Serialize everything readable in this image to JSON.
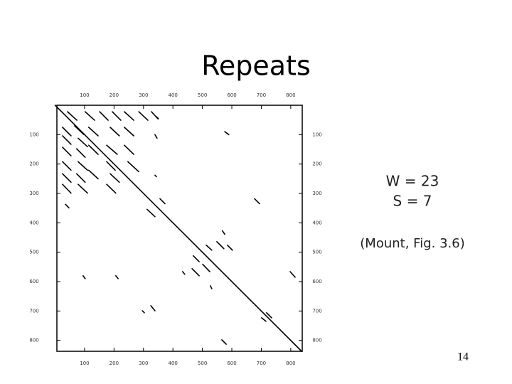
{
  "slide": {
    "title": "Repeats",
    "annotations": [
      "W = 23",
      "S = 7",
      "(Mount, Fig. 3.6)"
    ],
    "page_number": "14"
  },
  "chart_data": {
    "type": "dotplot",
    "color": "#000000",
    "xlim": [
      6,
      839
    ],
    "ylim": [
      0,
      837
    ],
    "xticks": [
      100,
      200,
      300,
      400,
      500,
      600,
      700,
      800
    ],
    "yticks": [
      100,
      200,
      300,
      400,
      500,
      600,
      700,
      800
    ],
    "segments": [
      {
        "x": [
          0,
          837
        ],
        "y": [
          0,
          837
        ]
      },
      {
        "x": [
          42,
          74
        ],
        "y": [
          22,
          51
        ]
      },
      {
        "x": [
          102,
          134
        ],
        "y": [
          22,
          51
        ]
      },
      {
        "x": [
          151,
          180
        ],
        "y": [
          22,
          51
        ]
      },
      {
        "x": [
          194,
          223
        ],
        "y": [
          22,
          51
        ]
      },
      {
        "x": [
          235,
          267
        ],
        "y": [
          22,
          51
        ]
      },
      {
        "x": [
          284,
          315
        ],
        "y": [
          22,
          51
        ]
      },
      {
        "x": [
          327,
          349
        ],
        "y": [
          22,
          46
        ]
      },
      {
        "x": [
          25,
          54
        ],
        "y": [
          75,
          104
        ]
      },
      {
        "x": [
          66,
          98
        ],
        "y": [
          70,
          100
        ]
      },
      {
        "x": [
          114,
          146
        ],
        "y": [
          75,
          104
        ]
      },
      {
        "x": [
          187,
          218
        ],
        "y": [
          75,
          104
        ]
      },
      {
        "x": [
          235,
          267
        ],
        "y": [
          75,
          104
        ]
      },
      {
        "x": [
          25,
          54
        ],
        "y": [
          104,
          133
        ]
      },
      {
        "x": [
          78,
          110
        ],
        "y": [
          112,
          141
        ]
      },
      {
        "x": [
          25,
          54
        ],
        "y": [
          143,
          172
        ]
      },
      {
        "x": [
          73,
          102
        ],
        "y": [
          148,
          177
        ]
      },
      {
        "x": [
          114,
          146
        ],
        "y": [
          136,
          167
        ]
      },
      {
        "x": [
          175,
          211
        ],
        "y": [
          136,
          167
        ]
      },
      {
        "x": [
          235,
          267
        ],
        "y": [
          136,
          167
        ]
      },
      {
        "x": [
          25,
          54
        ],
        "y": [
          192,
          221
        ]
      },
      {
        "x": [
          78,
          110
        ],
        "y": [
          192,
          221
        ]
      },
      {
        "x": [
          175,
          204
        ],
        "y": [
          192,
          221
        ]
      },
      {
        "x": [
          247,
          284
        ],
        "y": [
          192,
          226
        ]
      },
      {
        "x": [
          25,
          54
        ],
        "y": [
          233,
          262
        ]
      },
      {
        "x": [
          73,
          102
        ],
        "y": [
          233,
          262
        ]
      },
      {
        "x": [
          114,
          146
        ],
        "y": [
          221,
          250
        ]
      },
      {
        "x": [
          187,
          218
        ],
        "y": [
          233,
          262
        ]
      },
      {
        "x": [
          25,
          54
        ],
        "y": [
          269,
          299
        ]
      },
      {
        "x": [
          78,
          110
        ],
        "y": [
          269,
          299
        ]
      },
      {
        "x": [
          175,
          206
        ],
        "y": [
          269,
          299
        ]
      },
      {
        "x": [
          35,
          47
        ],
        "y": [
          337,
          349
        ]
      },
      {
        "x": [
          356,
          373
        ],
        "y": [
          318,
          335
        ]
      },
      {
        "x": [
          312,
          339
        ],
        "y": [
          354,
          379
        ]
      },
      {
        "x": [
          677,
          694
        ],
        "y": [
          318,
          335
        ]
      },
      {
        "x": [
          568,
          576
        ],
        "y": [
          427,
          439
        ]
      },
      {
        "x": [
          513,
          532
        ],
        "y": [
          476,
          493
        ]
      },
      {
        "x": [
          549,
          573
        ],
        "y": [
          464,
          488
        ]
      },
      {
        "x": [
          585,
          602
        ],
        "y": [
          476,
          493
        ]
      },
      {
        "x": [
          469,
          489
        ],
        "y": [
          512,
          532
        ]
      },
      {
        "x": [
          501,
          525
        ],
        "y": [
          541,
          566
        ]
      },
      {
        "x": [
          465,
          489
        ],
        "y": [
          556,
          580
        ]
      },
      {
        "x": [
          433,
          440
        ],
        "y": [
          566,
          575
        ]
      },
      {
        "x": [
          576,
          590
        ],
        "y": [
          90,
          100
        ]
      },
      {
        "x": [
          798,
          815
        ],
        "y": [
          566,
          585
        ]
      },
      {
        "x": [
          95,
          102
        ],
        "y": [
          580,
          590
        ]
      },
      {
        "x": [
          206,
          214
        ],
        "y": [
          580,
          590
        ]
      },
      {
        "x": [
          527,
          532
        ],
        "y": [
          614,
          624
        ]
      },
      {
        "x": [
          325,
          339
        ],
        "y": [
          682,
          699
        ]
      },
      {
        "x": [
          296,
          303
        ],
        "y": [
          699,
          706
        ]
      },
      {
        "x": [
          718,
          735
        ],
        "y": [
          706,
          723
        ]
      },
      {
        "x": [
          701,
          716
        ],
        "y": [
          723,
          735
        ]
      },
      {
        "x": [
          566,
          581
        ],
        "y": [
          798,
          813
        ]
      },
      {
        "x": [
          344,
          351
        ],
        "y": [
          39,
          46
        ]
      },
      {
        "x": [
          339,
          344
        ],
        "y": [
          238,
          243
        ]
      },
      {
        "x": [
          339,
          346
        ],
        "y": [
          100,
          112
        ]
      }
    ]
  }
}
